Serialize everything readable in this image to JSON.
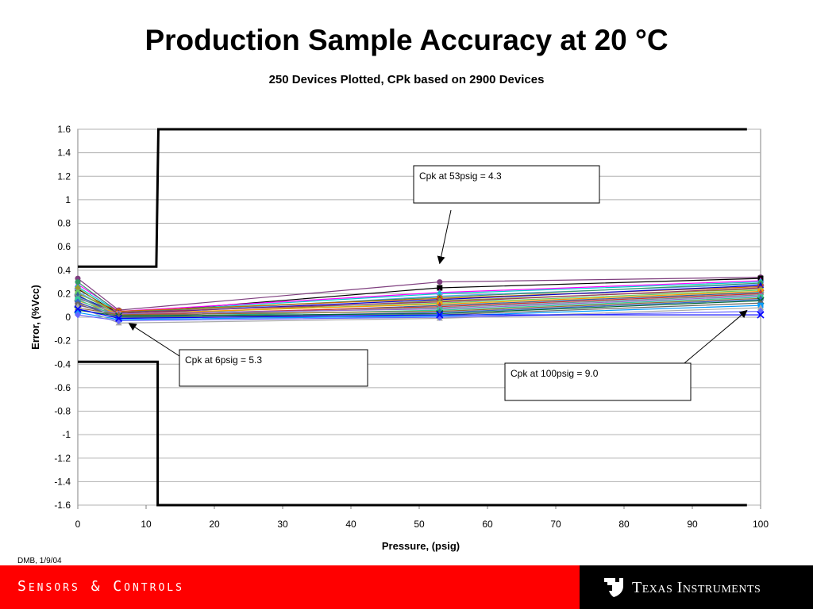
{
  "slide": {
    "title": "Production Sample Accuracy at 20 °C",
    "subtitle": "250 Devices Plotted, CPk based on 2900 Devices"
  },
  "footer": {
    "note": "DMB, 1/9/04",
    "left_text": "Sensors & Controls",
    "brand_text": "Texas Instruments",
    "colors": {
      "bar": "#ff0000",
      "brand_bg": "#000000"
    }
  },
  "chart_data": {
    "type": "line",
    "title": "",
    "xlabel": "Pressure, (psig)",
    "ylabel": "Error, (%Vcc)",
    "xlim": [
      0,
      100
    ],
    "ylim": [
      -1.6,
      1.6
    ],
    "x_ticks": [
      0,
      10,
      20,
      30,
      40,
      50,
      60,
      70,
      80,
      90,
      100
    ],
    "y_ticks": [
      1.6,
      1.4,
      1.2,
      1,
      0.8,
      0.6,
      0.4,
      0.2,
      0,
      -0.2,
      -0.4,
      -0.6,
      -0.8,
      -1,
      -1.2,
      -1.4,
      -1.6
    ],
    "y_tick_labels": [
      "1.6",
      "1.4",
      "1.2",
      "1",
      "0.8",
      "0.6",
      "0.4",
      "0.2",
      "0",
      "-0.2",
      "-0.4",
      "-0.6",
      "-0.8",
      "-1",
      "-1.2",
      "-1.4",
      "-1.6"
    ],
    "grid": true,
    "sample_x": [
      0,
      6,
      53,
      100
    ],
    "device_series": [
      {
        "color": "#7f3f7f",
        "values": [
          0.33,
          0.06,
          0.3,
          0.34
        ]
      },
      {
        "color": "#000000",
        "values": [
          0.24,
          0.03,
          0.25,
          0.33
        ]
      },
      {
        "color": "#ff00ff",
        "values": [
          0.28,
          0.05,
          0.21,
          0.31
        ]
      },
      {
        "color": "#00cccc",
        "values": [
          0.26,
          0.04,
          0.2,
          0.3
        ]
      },
      {
        "color": "#6699ff",
        "values": [
          0.22,
          0.02,
          0.18,
          0.28
        ]
      },
      {
        "color": "#339966",
        "values": [
          0.3,
          0.04,
          0.17,
          0.29
        ]
      },
      {
        "color": "#cc6600",
        "values": [
          0.2,
          0.05,
          0.16,
          0.26
        ]
      },
      {
        "color": "#0000cc",
        "values": [
          0.18,
          0.03,
          0.15,
          0.27
        ]
      },
      {
        "color": "#999933",
        "values": [
          0.25,
          0.01,
          0.14,
          0.24
        ]
      },
      {
        "color": "#993366",
        "values": [
          0.16,
          0.04,
          0.13,
          0.25
        ]
      },
      {
        "color": "#66cc66",
        "values": [
          0.21,
          0.02,
          0.12,
          0.23
        ]
      },
      {
        "color": "#ff9900",
        "values": [
          0.14,
          0.03,
          0.11,
          0.22
        ]
      },
      {
        "color": "#336699",
        "values": [
          0.19,
          0.0,
          0.1,
          0.21
        ]
      },
      {
        "color": "#cc3333",
        "values": [
          0.12,
          0.02,
          0.09,
          0.2
        ]
      },
      {
        "color": "#669999",
        "values": [
          0.17,
          0.01,
          0.08,
          0.19
        ]
      },
      {
        "color": "#9966cc",
        "values": [
          0.1,
          0.03,
          0.07,
          0.18
        ]
      },
      {
        "color": "#33cc99",
        "values": [
          0.15,
          0.0,
          0.06,
          0.17
        ]
      },
      {
        "color": "#996633",
        "values": [
          0.08,
          0.02,
          0.05,
          0.16
        ]
      },
      {
        "color": "#3366cc",
        "values": [
          0.13,
          -0.01,
          0.04,
          0.15
        ]
      },
      {
        "color": "#006633",
        "values": [
          0.06,
          0.01,
          0.03,
          0.14
        ]
      },
      {
        "color": "#666666",
        "values": [
          0.11,
          0.0,
          0.02,
          0.12
        ]
      },
      {
        "color": "#0099ff",
        "values": [
          0.04,
          -0.02,
          0.01,
          0.1
        ]
      },
      {
        "color": "#aaaaaa",
        "values": [
          0.09,
          -0.05,
          -0.01,
          0.08
        ]
      },
      {
        "color": "#6666ff",
        "values": [
          0.02,
          -0.03,
          0.0,
          0.05
        ]
      },
      {
        "color": "#0000ff",
        "values": [
          0.07,
          -0.01,
          0.02,
          0.02
        ]
      }
    ],
    "spec_limits": {
      "upper": [
        {
          "x": 0,
          "y": 0.43
        },
        {
          "x": 11.5,
          "y": 0.43
        },
        {
          "x": 11.8,
          "y": 1.6
        },
        {
          "x": 98,
          "y": 1.6
        }
      ],
      "lower": [
        {
          "x": 0,
          "y": -0.38
        },
        {
          "x": 11.7,
          "y": -0.38
        },
        {
          "x": 11.7,
          "y": -1.6
        },
        {
          "x": 98,
          "y": -1.6
        }
      ]
    },
    "annotations": [
      {
        "text": "Cpk at 53psig = 4.3",
        "arrow_to": {
          "x": 53,
          "y": 0.43
        }
      },
      {
        "text": "Cpk at 6psig = 5.3",
        "arrow_to": {
          "x": 7.5,
          "y": -0.08
        }
      },
      {
        "text": "Cpk at 100psig = 9.0",
        "arrow_to": {
          "x": 98,
          "y": 0.03
        }
      }
    ]
  }
}
